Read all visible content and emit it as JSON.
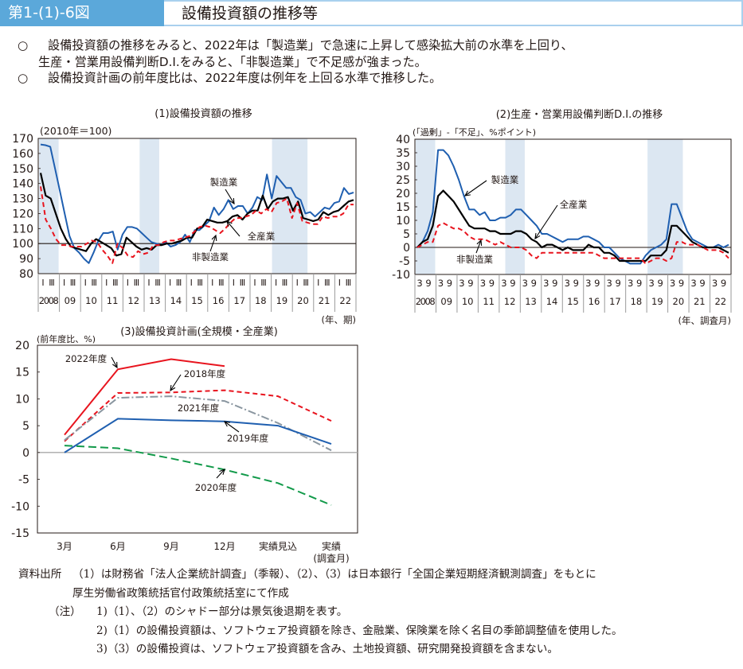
{
  "header": {
    "figure_number": "第1-(1)-6図",
    "title": "設備投資額の推移等"
  },
  "summary": [
    {
      "bullet": "○",
      "text": "設備投資額の推移をみると、2022年は「製造業」で急速に上昇して感染拡大前の水準を上回り、"
    },
    {
      "bullet": "",
      "text": "生産・営業用設備判断D.I.をみると、「非製造業」で不足感が強まった。"
    },
    {
      "bullet": "○",
      "text": "設備投資計画の前年度比は、2022年度は例年を上回る水準で推移した。"
    }
  ],
  "colors": {
    "header_blue": "#5ba8da",
    "manufacturing": "#1f5fb0",
    "all_industries": "#000000",
    "non_manufacturing": "#e8141e",
    "shade": "#dce7f2",
    "fy2022": "#e8141e",
    "fy2018": "#e8141e",
    "fy2021": "#8a96a0",
    "fy2019": "#1f5fb0",
    "fy2020": "#129a4a"
  },
  "chart_data": [
    {
      "type": "line",
      "title": "(1)設備投資額の推移",
      "ylabel": "(2010年＝100)",
      "xlabel": "(年、期)",
      "ylim": [
        80,
        170
      ],
      "yticks": [
        "170",
        "160",
        "150",
        "140",
        "130",
        "120",
        "110",
        "100",
        "90",
        "80"
      ],
      "quarter_labels": [
        "I",
        "Ⅲ"
      ],
      "year_labels": [
        "2008",
        "09",
        "10",
        "11",
        "12",
        "13",
        "14",
        "15",
        "16",
        "17",
        "18",
        "19",
        "20",
        "21",
        "22"
      ],
      "reference_line": 100,
      "recession_shading_quarters": [
        [
          0,
          3
        ],
        [
          19,
          22
        ],
        [
          44,
          50
        ]
      ],
      "series": [
        {
          "name": "製造業",
          "style": "solid-blue",
          "values": [
            166,
            165.5,
            164.5,
            150,
            135,
            120,
            105,
            97,
            94,
            90,
            87,
            94,
            102,
            107,
            107,
            108,
            96,
            106,
            111,
            111,
            110,
            107,
            104,
            101,
            100,
            99,
            101,
            98,
            99,
            101,
            106,
            101,
            109,
            109,
            112,
            115,
            124,
            119,
            123,
            129,
            123,
            125,
            125,
            120,
            124,
            131,
            129,
            146,
            130,
            145,
            141,
            137,
            137,
            131,
            129,
            120,
            121,
            118,
            121,
            124,
            123,
            127,
            128,
            137,
            133,
            134
          ]
        },
        {
          "name": "全産業",
          "style": "solid-black",
          "values": [
            147,
            132,
            130,
            120,
            110,
            103,
            98,
            97,
            96,
            95,
            100,
            103,
            101,
            99,
            97,
            92,
            93,
            104,
            101,
            98,
            96,
            97,
            96,
            99,
            99,
            100,
            100,
            101,
            102,
            104,
            104,
            110,
            111,
            116,
            115,
            114,
            114,
            115,
            118,
            119,
            116,
            120,
            122,
            122,
            132,
            123,
            128,
            130,
            130,
            131,
            122,
            128,
            117,
            116,
            115,
            116,
            121,
            119,
            121,
            122,
            125,
            128,
            129
          ]
        },
        {
          "name": "非製造業",
          "style": "dashed-red",
          "values": [
            138,
            116,
            110,
            103,
            99,
            99,
            98,
            98,
            98,
            100,
            102,
            101,
            96,
            92,
            87,
            100,
            97,
            92,
            91,
            95,
            93,
            94,
            99,
            99,
            101,
            102,
            102,
            103,
            104,
            105,
            108,
            111,
            112,
            111,
            109,
            107,
            110,
            114,
            117,
            117,
            118,
            119,
            122,
            120,
            123,
            121,
            127,
            128,
            130,
            117,
            127,
            115,
            114,
            113,
            113,
            118,
            117,
            118,
            118,
            120,
            126,
            126
          ]
        }
      ],
      "annotations": [
        "製造業",
        "全産業",
        "非製造業"
      ]
    },
    {
      "type": "line",
      "title": "(2)生産・営業用設備判断D.I.の推移",
      "ylabel": "(「過剰」-「不足」、%ポイント)",
      "xlabel": "(年、調査月)",
      "ylim": [
        -10,
        40
      ],
      "yticks": [
        "40",
        "35",
        "30",
        "25",
        "20",
        "15",
        "10",
        "5",
        "0",
        "-5",
        "-10"
      ],
      "month_labels": [
        "3",
        "9"
      ],
      "year_labels": [
        "2008",
        "09",
        "10",
        "11",
        "12",
        "13",
        "14",
        "15",
        "16",
        "17",
        "18",
        "19",
        "20",
        "21",
        "22"
      ],
      "reference_line": 0,
      "recession_shading_quarters": [
        [
          0,
          3
        ],
        [
          17,
          20
        ],
        [
          44,
          50
        ]
      ],
      "series": [
        {
          "name": "製造業",
          "style": "solid-blue",
          "values": [
            0,
            2,
            6,
            13,
            36,
            36,
            34,
            30,
            25,
            19,
            14,
            14,
            12,
            13,
            10,
            10,
            11,
            11,
            12,
            14,
            14,
            12,
            10,
            8,
            5,
            5,
            4,
            3,
            2,
            3,
            3,
            3,
            4,
            4,
            3,
            2,
            0,
            0,
            -2,
            -4,
            -5,
            -6,
            -6,
            -6,
            -3,
            -1,
            0,
            1,
            3,
            16,
            16,
            11,
            6,
            3,
            2,
            1,
            0,
            0,
            1,
            0,
            1
          ]
        },
        {
          "name": "全産業",
          "style": "solid-black",
          "values": [
            0,
            2,
            3,
            8,
            19,
            21,
            19,
            17,
            14,
            11,
            8,
            7,
            7,
            7,
            6,
            6,
            5,
            5,
            5,
            6,
            6,
            5,
            3,
            2,
            0,
            1,
            1,
            0,
            -1,
            0,
            -1,
            -1,
            -1,
            1,
            0,
            0,
            -2,
            -2,
            -3,
            -5,
            -5,
            -5,
            -5,
            -5,
            -5,
            -3,
            -3,
            -3,
            -1,
            8,
            8,
            6,
            4,
            2,
            1,
            0,
            0,
            0,
            0,
            -1,
            -2
          ]
        },
        {
          "name": "非製造業",
          "style": "dashed-red",
          "values": [
            0,
            1,
            2,
            2,
            8,
            9,
            8,
            7,
            7,
            6,
            4,
            3,
            3,
            3,
            2,
            1,
            2,
            1,
            0,
            0,
            0,
            -1,
            -3,
            -4,
            -2,
            -2,
            -2,
            -2,
            -2,
            -2,
            -2,
            -2,
            -2,
            -2,
            -2,
            -3,
            -4,
            -4,
            -4,
            -4,
            -4,
            -4,
            -4,
            -4,
            -6,
            -5,
            -4,
            -4,
            -5,
            -4,
            2,
            2,
            1,
            1,
            1,
            0,
            -1,
            -1,
            -1,
            -2,
            -4
          ]
        }
      ],
      "annotations": [
        "製造業",
        "全産業",
        "非製造業"
      ]
    },
    {
      "type": "line",
      "title": "(3)設備投資計画(全規模・全産業)",
      "ylabel": "(前年度比、%)",
      "xlabel": "(調査月)",
      "ylim": [
        -15,
        20
      ],
      "yticks": [
        "20",
        "15",
        "10",
        "5",
        "0",
        "-5",
        "-10",
        "-15"
      ],
      "categories": [
        "3月",
        "6月",
        "9月",
        "12月",
        "実績見込",
        "実績"
      ],
      "series": [
        {
          "name": "2022年度",
          "style": "solid-red",
          "values": [
            3.3,
            15.5,
            17.4,
            16.1,
            null,
            null
          ]
        },
        {
          "name": "2018年度",
          "style": "dashed-red",
          "values": [
            2.1,
            11.1,
            11.2,
            11.6,
            10.5,
            5.9
          ]
        },
        {
          "name": "2021年度",
          "style": "dashdot-gray",
          "values": [
            2.3,
            10.2,
            10.5,
            9.6,
            5.5,
            0.4
          ]
        },
        {
          "name": "2019年度",
          "style": "solid-blue",
          "values": [
            0.0,
            6.3,
            6.0,
            5.8,
            5.0,
            1.6
          ]
        },
        {
          "name": "2020年度",
          "style": "dashed-green",
          "values": [
            1.3,
            0.8,
            -1.1,
            -3.2,
            -5.7,
            -9.8
          ]
        }
      ]
    }
  ],
  "footnotes": {
    "source_label": "資料出所",
    "source_line1": "（1）は財務省「法人企業統計調査」（季報）、（2）、（3）は日本銀行「全国企業短期経済観測調査」をもとに",
    "source_line2": "厚生労働省政策統括官付政策統括室にて作成",
    "note_label": "（注）",
    "notes": [
      "1)（1）、（2）のシャドー部分は景気後退期を表す。",
      "2)（1）の設備投資額は、ソフトウェア投資額を除き、金融業、保険業を除く名目の季節調整値を使用した。",
      "3)（3）の設備投資は、ソフトウェア投資額を含み、土地投資額、研究開発投資額を含まない。"
    ]
  }
}
